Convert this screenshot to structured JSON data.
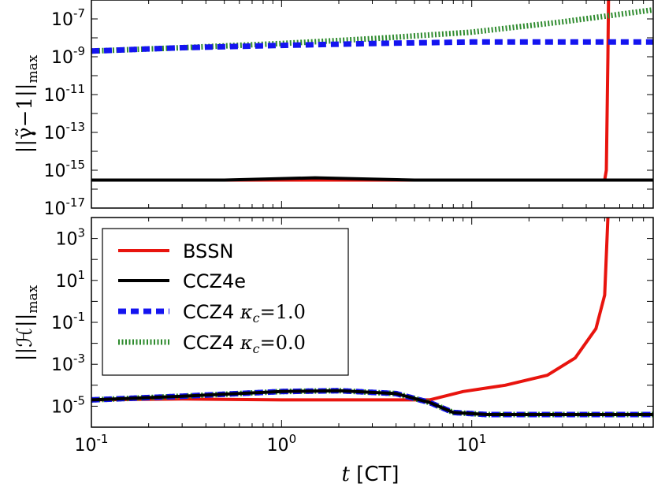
{
  "chart_data": [
    {
      "type": "line",
      "panel": "top",
      "ylabel": "||γ̃−1||max",
      "ylabel_main": "||γ̃−1||",
      "ylabel_sub": "max",
      "xscale": "log",
      "yscale": "log",
      "xlim": [
        0.1,
        90
      ],
      "ylim": [
        1e-17,
        1e-06
      ],
      "yticks": [
        {
          "base": "10",
          "exp": "-7",
          "value": 1e-07
        },
        {
          "base": "10",
          "exp": "-9",
          "value": 1e-09
        },
        {
          "base": "10",
          "exp": "-11",
          "value": 1e-11
        },
        {
          "base": "10",
          "exp": "-13",
          "value": 1e-13
        },
        {
          "base": "10",
          "exp": "-15",
          "value": 1e-15
        },
        {
          "base": "10",
          "exp": "-17",
          "value": 1e-17
        }
      ],
      "series": [
        {
          "name": "BSSN",
          "color": "#e8140e",
          "style": "solid",
          "x": [
            0.1,
            1,
            10,
            50,
            51,
            52,
            52.5
          ],
          "y": [
            3e-16,
            3e-16,
            3e-16,
            3e-16,
            1e-15,
            1e-09,
            1e-05
          ]
        },
        {
          "name": "CCZ4e",
          "color": "#000000",
          "style": "solid",
          "x": [
            0.1,
            0.5,
            1.5,
            5,
            20,
            90
          ],
          "y": [
            3e-16,
            3e-16,
            4e-16,
            3e-16,
            3e-16,
            3e-16
          ]
        },
        {
          "name": "CCZ4 κc=1.0",
          "color": "#1414f0",
          "style": "dashed",
          "x": [
            0.1,
            0.3,
            1,
            3,
            10,
            90
          ],
          "y": [
            2e-09,
            3e-09,
            4e-09,
            5e-09,
            6e-09,
            6e-09
          ]
        },
        {
          "name": "CCZ4 κc=0.0",
          "color": "#2e8b2e",
          "style": "dotted",
          "x": [
            0.1,
            0.3,
            1,
            3,
            10,
            30,
            90
          ],
          "y": [
            2e-09,
            3e-09,
            5e-09,
            9e-09,
            2e-08,
            7e-08,
            3e-07
          ]
        }
      ]
    },
    {
      "type": "line",
      "panel": "bottom",
      "xlabel": "t [CT]",
      "xlabel_italic": "t",
      "xlabel_rest": " [CT]",
      "ylabel": "||ℋ||max",
      "ylabel_main": "||ℋ||",
      "ylabel_sub": "max",
      "xscale": "log",
      "yscale": "log",
      "xlim": [
        0.1,
        90
      ],
      "ylim": [
        1e-06,
        10000.0
      ],
      "xticks": [
        {
          "base": "10",
          "exp": "-1",
          "value": 0.1
        },
        {
          "base": "10",
          "exp": "0",
          "value": 1
        },
        {
          "base": "10",
          "exp": "1",
          "value": 10
        }
      ],
      "yticks": [
        {
          "base": "10",
          "exp": "3",
          "value": 1000.0
        },
        {
          "base": "10",
          "exp": "1",
          "value": 10.0
        },
        {
          "base": "10",
          "exp": "-1",
          "value": 0.1
        },
        {
          "base": "10",
          "exp": "-3",
          "value": 0.001
        },
        {
          "base": "10",
          "exp": "-5",
          "value": 1e-05
        }
      ],
      "series": [
        {
          "name": "BSSN",
          "color": "#e8140e",
          "style": "solid",
          "x": [
            0.1,
            0.3,
            1,
            3,
            6,
            9,
            15,
            25,
            35,
            45,
            50,
            52
          ],
          "y": [
            2e-05,
            2.2e-05,
            2e-05,
            2e-05,
            2e-05,
            5e-05,
            0.0001,
            0.0003,
            0.002,
            0.05,
            2,
            10000.0
          ]
        },
        {
          "name": "CCZ4e",
          "color": "#000000",
          "style": "solid",
          "x": [
            0.1,
            0.3,
            1,
            2,
            4,
            6,
            8,
            12,
            20,
            90
          ],
          "y": [
            2e-05,
            3e-05,
            5e-05,
            5.5e-05,
            4e-05,
            1.5e-05,
            5e-06,
            4e-06,
            4e-06,
            4e-06
          ]
        },
        {
          "name": "CCZ4 κc=1.0",
          "color": "#1414f0",
          "style": "dashed",
          "x": [
            0.1,
            0.3,
            1,
            2,
            4,
            6,
            8,
            12,
            20,
            90
          ],
          "y": [
            2e-05,
            3e-05,
            5e-05,
            5.5e-05,
            4e-05,
            1.5e-05,
            5e-06,
            4e-06,
            4e-06,
            4e-06
          ]
        },
        {
          "name": "CCZ4 κc=0.0",
          "color": "#2e8b2e",
          "style": "dotted",
          "x": [
            0.1,
            0.3,
            1,
            2,
            4,
            6,
            8,
            12,
            20,
            90
          ],
          "y": [
            2e-05,
            3e-05,
            5e-05,
            5.5e-05,
            4e-05,
            1.5e-05,
            5e-06,
            4e-06,
            4e-06,
            4e-06
          ]
        }
      ],
      "legend": {
        "location": "upper-left",
        "entries": [
          {
            "label_main": "BSSN",
            "label_kappa": "",
            "color": "#e8140e",
            "style": "solid"
          },
          {
            "label_main": "CCZ4e",
            "label_kappa": "",
            "color": "#000000",
            "style": "solid"
          },
          {
            "label_main": "CCZ4",
            "label_kappa": "=1.0",
            "color": "#1414f0",
            "style": "dashed"
          },
          {
            "label_main": "CCZ4",
            "label_kappa": "=0.0",
            "color": "#2e8b2e",
            "style": "dotted"
          }
        ]
      }
    }
  ]
}
